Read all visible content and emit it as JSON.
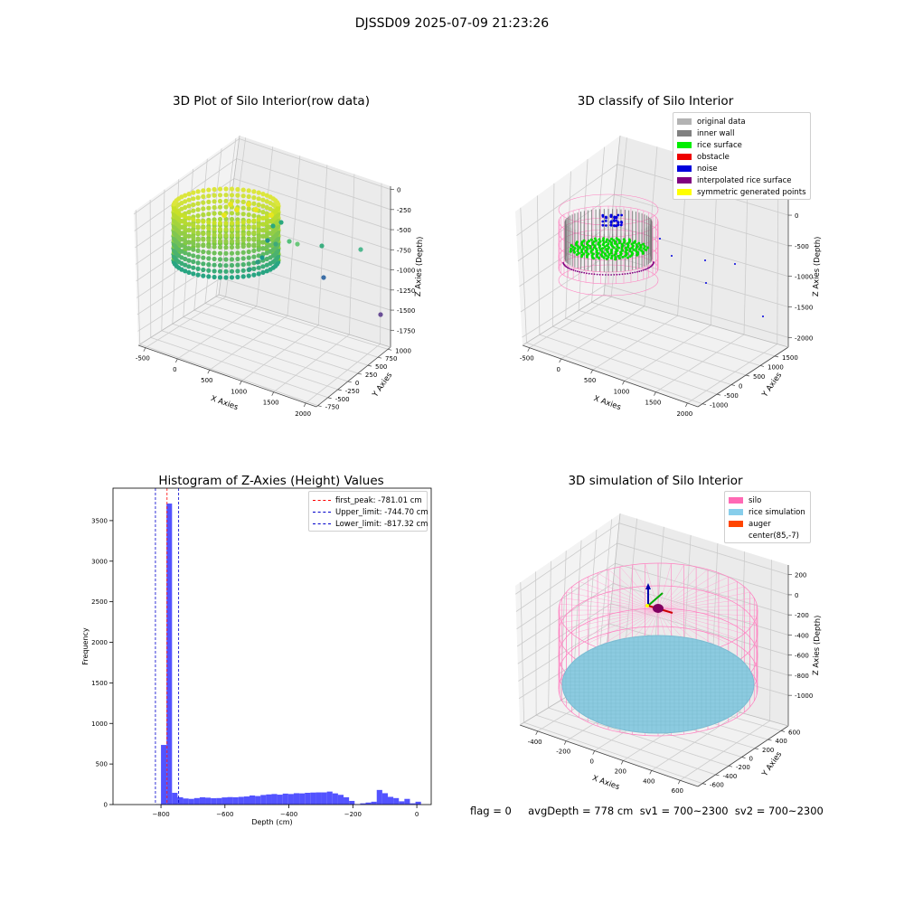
{
  "suptitle": "DJSSD09 2025-07-09 21:23:26",
  "panels": {
    "raw": {
      "title": "3D Plot of Silo Interior(row data)",
      "x_label": "X Axies",
      "y_label": "Y Axies",
      "z_label": "Z Axies (Depth)",
      "x_ticks": [
        "-500",
        "0",
        "500",
        "1000",
        "1500",
        "2000"
      ],
      "y_ticks": [
        "-750",
        "-500",
        "-250",
        "0",
        "250",
        "500",
        "750",
        "1000"
      ],
      "z_ticks": [
        "0",
        "-250",
        "-500",
        "-750",
        "-1000",
        "-1250",
        "-1500",
        "-1750"
      ]
    },
    "classify": {
      "title": "3D classify of Silo Interior",
      "x_label": "X Axies",
      "y_label": "Y Axies",
      "z_label": "Z Axies (Depth)",
      "x_ticks": [
        "-500",
        "0",
        "500",
        "1000",
        "1500",
        "2000"
      ],
      "y_ticks": [
        "-1000",
        "-500",
        "0",
        "500",
        "1000",
        "1500"
      ],
      "z_ticks": [
        "0",
        "-500",
        "-1000",
        "-1500",
        "-2000"
      ],
      "legend": [
        {
          "label": "original data",
          "color": "#b3b3b3"
        },
        {
          "label": "inner wall",
          "color": "#808080"
        },
        {
          "label": "rice surface",
          "color": "#00ee00"
        },
        {
          "label": "obstacle",
          "color": "#ee0000"
        },
        {
          "label": "noise",
          "color": "#0000dd"
        },
        {
          "label": "interpolated rice surface",
          "color": "#800080"
        },
        {
          "label": "symmetric generated points",
          "color": "#ffff00"
        }
      ]
    },
    "histogram": {
      "title": "Histogram of Z-Axies (Height) Values",
      "x_label": "Depth (cm)",
      "y_label": "Frequency",
      "legend": [
        {
          "label": "first_peak: -781.01 cm",
          "color": "#ff0000"
        },
        {
          "label": "Upper_limit: -744.70 cm",
          "color": "#0000cc"
        },
        {
          "label": "Lower_limit: -817.32 cm",
          "color": "#0000cc"
        }
      ]
    },
    "simulation": {
      "title": "3D simulation of Silo Interior",
      "x_label": "X Axies",
      "y_label": "Y Axies",
      "z_label": "Z Axies (Depth)",
      "x_ticks": [
        "-400",
        "-200",
        "0",
        "200",
        "400",
        "600"
      ],
      "y_ticks": [
        "-600",
        "-400",
        "-200",
        "0",
        "200",
        "400",
        "600"
      ],
      "z_ticks": [
        "200",
        "0",
        "-200",
        "-400",
        "-600",
        "-800",
        "-1000"
      ],
      "legend": [
        {
          "label": "silo",
          "color": "#ff69b4"
        },
        {
          "label": "rice simulation",
          "color": "#87ceeb"
        },
        {
          "label": "auger",
          "color": "#ff4500"
        },
        {
          "label": "center(85,-7)",
          "color": ""
        }
      ]
    }
  },
  "footer": "flag = 0     avgDepth = 778 cm  sv1 = 700~2300  sv2 = 700~2300",
  "chart_data": [
    {
      "type": "bar",
      "title": "Histogram of Z-Axies (Height) Values",
      "xlabel": "Depth (cm)",
      "ylabel": "Frequency",
      "xlim": [
        -950,
        45
      ],
      "ylim": [
        0,
        3900
      ],
      "x_ticks": [
        -800,
        -600,
        -400,
        -200,
        0
      ],
      "y_ticks": [
        0,
        500,
        1000,
        1500,
        2000,
        2500,
        3000,
        3500
      ],
      "bin_width": 17.3,
      "bin_starts": [
        -817.3,
        -800,
        -782.7,
        -765.4,
        -748.1,
        -730.8,
        -713.5,
        -696.2,
        -678.9,
        -661.6,
        -644.3,
        -627,
        -609.7,
        -592.4,
        -575.1,
        -557.8,
        -540.5,
        -523.2,
        -505.9,
        -488.6,
        -471.3,
        -454,
        -436.7,
        -419.4,
        -402.1,
        -384.8,
        -367.5,
        -350.2,
        -332.9,
        -315.6,
        -298.3,
        -281,
        -263.7,
        -246.4,
        -229.1,
        -211.8,
        -194.5,
        -177.2,
        -159.9,
        -142.6,
        -125.3,
        -108,
        -90.7,
        -73.4,
        -56.1,
        -38.8,
        -21.5,
        -4.2
      ],
      "frequencies": [
        5,
        735,
        3710,
        145,
        90,
        75,
        70,
        80,
        90,
        85,
        78,
        80,
        88,
        92,
        90,
        95,
        100,
        112,
        105,
        118,
        125,
        130,
        122,
        135,
        130,
        140,
        138,
        145,
        148,
        150,
        150,
        160,
        138,
        120,
        90,
        45,
        5,
        15,
        25,
        35,
        180,
        140,
        95,
        80,
        40,
        70,
        15,
        35
      ],
      "color": "#4444ff",
      "vlines": [
        {
          "x": -781.01,
          "label": "first_peak: -781.01 cm",
          "color": "#ff0000"
        },
        {
          "x": -744.7,
          "label": "Upper_limit: -744.70 cm",
          "color": "#0000cc"
        },
        {
          "x": -817.32,
          "label": "Lower_limit: -817.32 cm",
          "color": "#0000cc"
        }
      ],
      "legend_position": "upper right"
    }
  ]
}
